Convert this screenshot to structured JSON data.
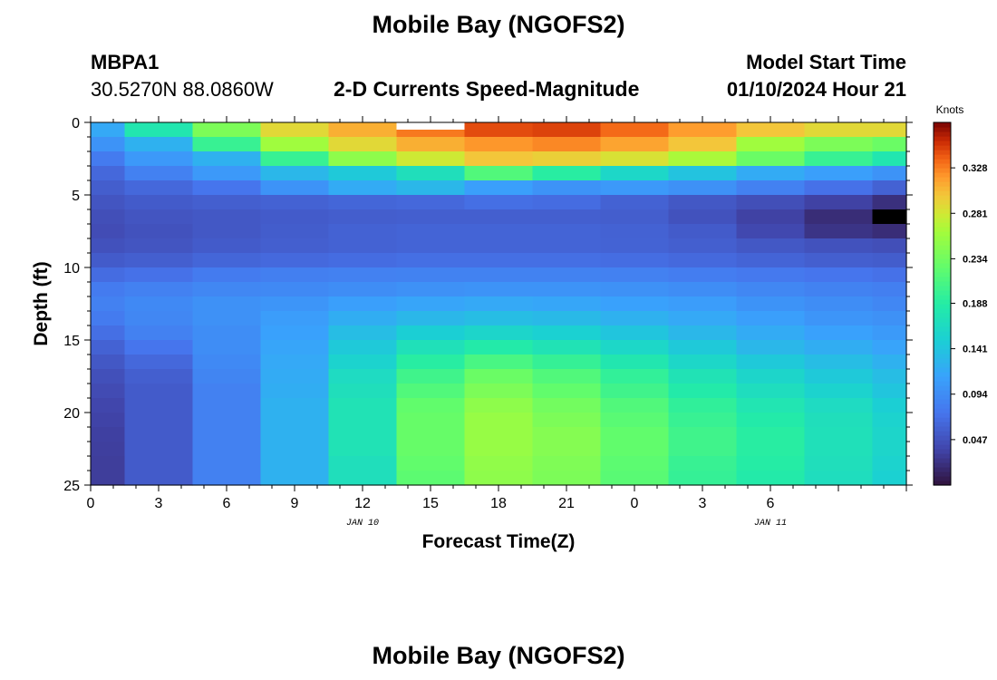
{
  "page": {
    "title": "Mobile Bay (NGOFS2)",
    "station_id": "MBPA1",
    "station_coords": "30.5270N  88.0860W",
    "chart_title": "2-D Currents Speed-Magnitude",
    "model_start_label": "Model Start Time",
    "model_start_value": "01/10/2024 Hour 21",
    "footer_title": "Mobile Bay (NGOFS2)"
  },
  "chart_data": {
    "type": "heatmap",
    "title": "2-D Currents Speed-Magnitude",
    "xlabel": "Forecast Time(Z)",
    "ylabel": "Depth (ft)",
    "x_tick_labels": [
      "0",
      "3",
      "6",
      "9",
      "12",
      "15",
      "18",
      "21",
      "0",
      "3",
      "6"
    ],
    "x_date_labels": [
      {
        "label": "JAN 10",
        "at_hour": 12
      },
      {
        "label": "JAN 11",
        "at_hour": 30
      }
    ],
    "xlim_hours": [
      0,
      36
    ],
    "ylim_ft": [
      0,
      25
    ],
    "y_tick_labels": [
      "0",
      "5",
      "10",
      "15",
      "20",
      "25"
    ],
    "colorbar": {
      "unit": "Knots",
      "ticks": [
        "0.047",
        "0.094",
        "0.141",
        "0.188",
        "0.234",
        "0.281",
        "0.328"
      ],
      "tick_values": [
        0.047,
        0.094,
        0.141,
        0.188,
        0.234,
        0.281,
        0.328
      ],
      "vmin": 0.0,
      "vmax": 0.375,
      "colormap": "turbo",
      "over_color": "#000000",
      "missing_color": "#ffffff"
    },
    "column_time_hours": [
      0,
      3,
      6,
      9,
      12,
      15,
      18,
      21,
      24,
      27,
      30,
      33,
      36
    ],
    "depth_layers_ft": [
      0.5,
      1.5,
      2.5,
      3.5,
      4.5,
      5.5,
      6.5,
      7.5,
      8.5,
      9.5,
      10.5,
      11.5,
      12.5,
      13.5,
      14.5,
      15.5,
      16.5,
      17.5,
      18.5,
      19.5,
      20.5,
      21.5,
      22.5,
      23.5,
      24.5
    ],
    "speed_knots_by_column": [
      [
        0.118,
        0.1,
        0.08,
        0.065,
        0.057,
        0.05,
        0.045,
        0.043,
        0.047,
        0.055,
        0.068,
        0.08,
        0.085,
        0.08,
        0.07,
        0.06,
        0.052,
        0.046,
        0.042,
        0.038,
        0.036,
        0.034,
        0.033,
        0.032,
        0.032
      ],
      [
        0.18,
        0.125,
        0.105,
        0.085,
        0.065,
        0.055,
        0.05,
        0.048,
        0.05,
        0.058,
        0.072,
        0.085,
        0.092,
        0.09,
        0.085,
        0.075,
        0.065,
        0.058,
        0.055,
        0.055,
        0.055,
        0.055,
        0.055,
        0.055,
        0.055
      ],
      [
        0.24,
        0.2,
        0.125,
        0.105,
        0.075,
        0.058,
        0.052,
        0.052,
        0.055,
        0.063,
        0.08,
        0.09,
        0.098,
        0.098,
        0.095,
        0.095,
        0.092,
        0.088,
        0.085,
        0.085,
        0.085,
        0.085,
        0.085,
        0.085,
        0.085
      ],
      [
        0.29,
        0.26,
        0.2,
        0.13,
        0.1,
        0.06,
        0.055,
        0.056,
        0.058,
        0.066,
        0.083,
        0.092,
        0.102,
        0.108,
        0.112,
        0.115,
        0.118,
        0.12,
        0.122,
        0.125,
        0.125,
        0.125,
        0.125,
        0.125,
        0.125
      ],
      [
        0.31,
        0.29,
        0.25,
        0.145,
        0.12,
        0.063,
        0.057,
        0.06,
        0.06,
        0.068,
        0.085,
        0.095,
        0.11,
        0.122,
        0.135,
        0.145,
        0.155,
        0.165,
        0.17,
        0.175,
        0.175,
        0.175,
        0.175,
        0.17,
        0.17
      ],
      [
        0.33,
        0.31,
        0.28,
        0.17,
        0.13,
        0.065,
        0.058,
        0.062,
        0.062,
        0.07,
        0.086,
        0.098,
        0.115,
        0.13,
        0.15,
        0.172,
        0.19,
        0.205,
        0.215,
        0.225,
        0.228,
        0.228,
        0.228,
        0.225,
        0.222
      ],
      [
        0.345,
        0.32,
        0.3,
        0.215,
        0.11,
        0.07,
        0.058,
        0.062,
        0.062,
        0.07,
        0.086,
        0.1,
        0.118,
        0.135,
        0.158,
        0.185,
        0.21,
        0.23,
        0.24,
        0.25,
        0.255,
        0.255,
        0.255,
        0.252,
        0.25
      ],
      [
        0.348,
        0.325,
        0.295,
        0.19,
        0.1,
        0.068,
        0.058,
        0.062,
        0.062,
        0.07,
        0.086,
        0.1,
        0.116,
        0.132,
        0.152,
        0.175,
        0.198,
        0.215,
        0.225,
        0.235,
        0.24,
        0.245,
        0.245,
        0.242,
        0.24
      ],
      [
        0.335,
        0.315,
        0.285,
        0.16,
        0.105,
        0.06,
        0.057,
        0.06,
        0.061,
        0.069,
        0.085,
        0.098,
        0.112,
        0.125,
        0.142,
        0.16,
        0.18,
        0.196,
        0.205,
        0.215,
        0.22,
        0.225,
        0.225,
        0.222,
        0.22
      ],
      [
        0.318,
        0.3,
        0.265,
        0.14,
        0.098,
        0.052,
        0.048,
        0.055,
        0.058,
        0.066,
        0.082,
        0.095,
        0.108,
        0.118,
        0.13,
        0.145,
        0.16,
        0.175,
        0.185,
        0.195,
        0.2,
        0.205,
        0.205,
        0.2,
        0.198
      ],
      [
        0.3,
        0.26,
        0.23,
        0.12,
        0.085,
        0.045,
        0.035,
        0.04,
        0.052,
        0.062,
        0.078,
        0.09,
        0.1,
        0.11,
        0.12,
        0.13,
        0.145,
        0.158,
        0.168,
        0.178,
        0.185,
        0.19,
        0.19,
        0.188,
        0.185
      ],
      [
        0.29,
        0.24,
        0.2,
        0.11,
        0.072,
        0.035,
        0.02,
        0.025,
        0.048,
        0.058,
        0.075,
        0.086,
        0.095,
        0.102,
        0.112,
        0.122,
        0.135,
        0.145,
        0.155,
        0.165,
        0.17,
        0.172,
        0.172,
        0.17,
        0.168
      ],
      [
        0.29,
        0.23,
        0.18,
        0.1,
        0.06,
        0.022,
        0.38,
        0.02,
        0.045,
        0.056,
        0.072,
        0.083,
        0.09,
        0.098,
        0.106,
        0.114,
        0.125,
        0.135,
        0.142,
        0.15,
        0.155,
        0.158,
        0.158,
        0.155,
        0.152
      ]
    ],
    "missing_cells": [
      {
        "column_time_hours": 15,
        "depth_ft": 0.25
      }
    ]
  }
}
